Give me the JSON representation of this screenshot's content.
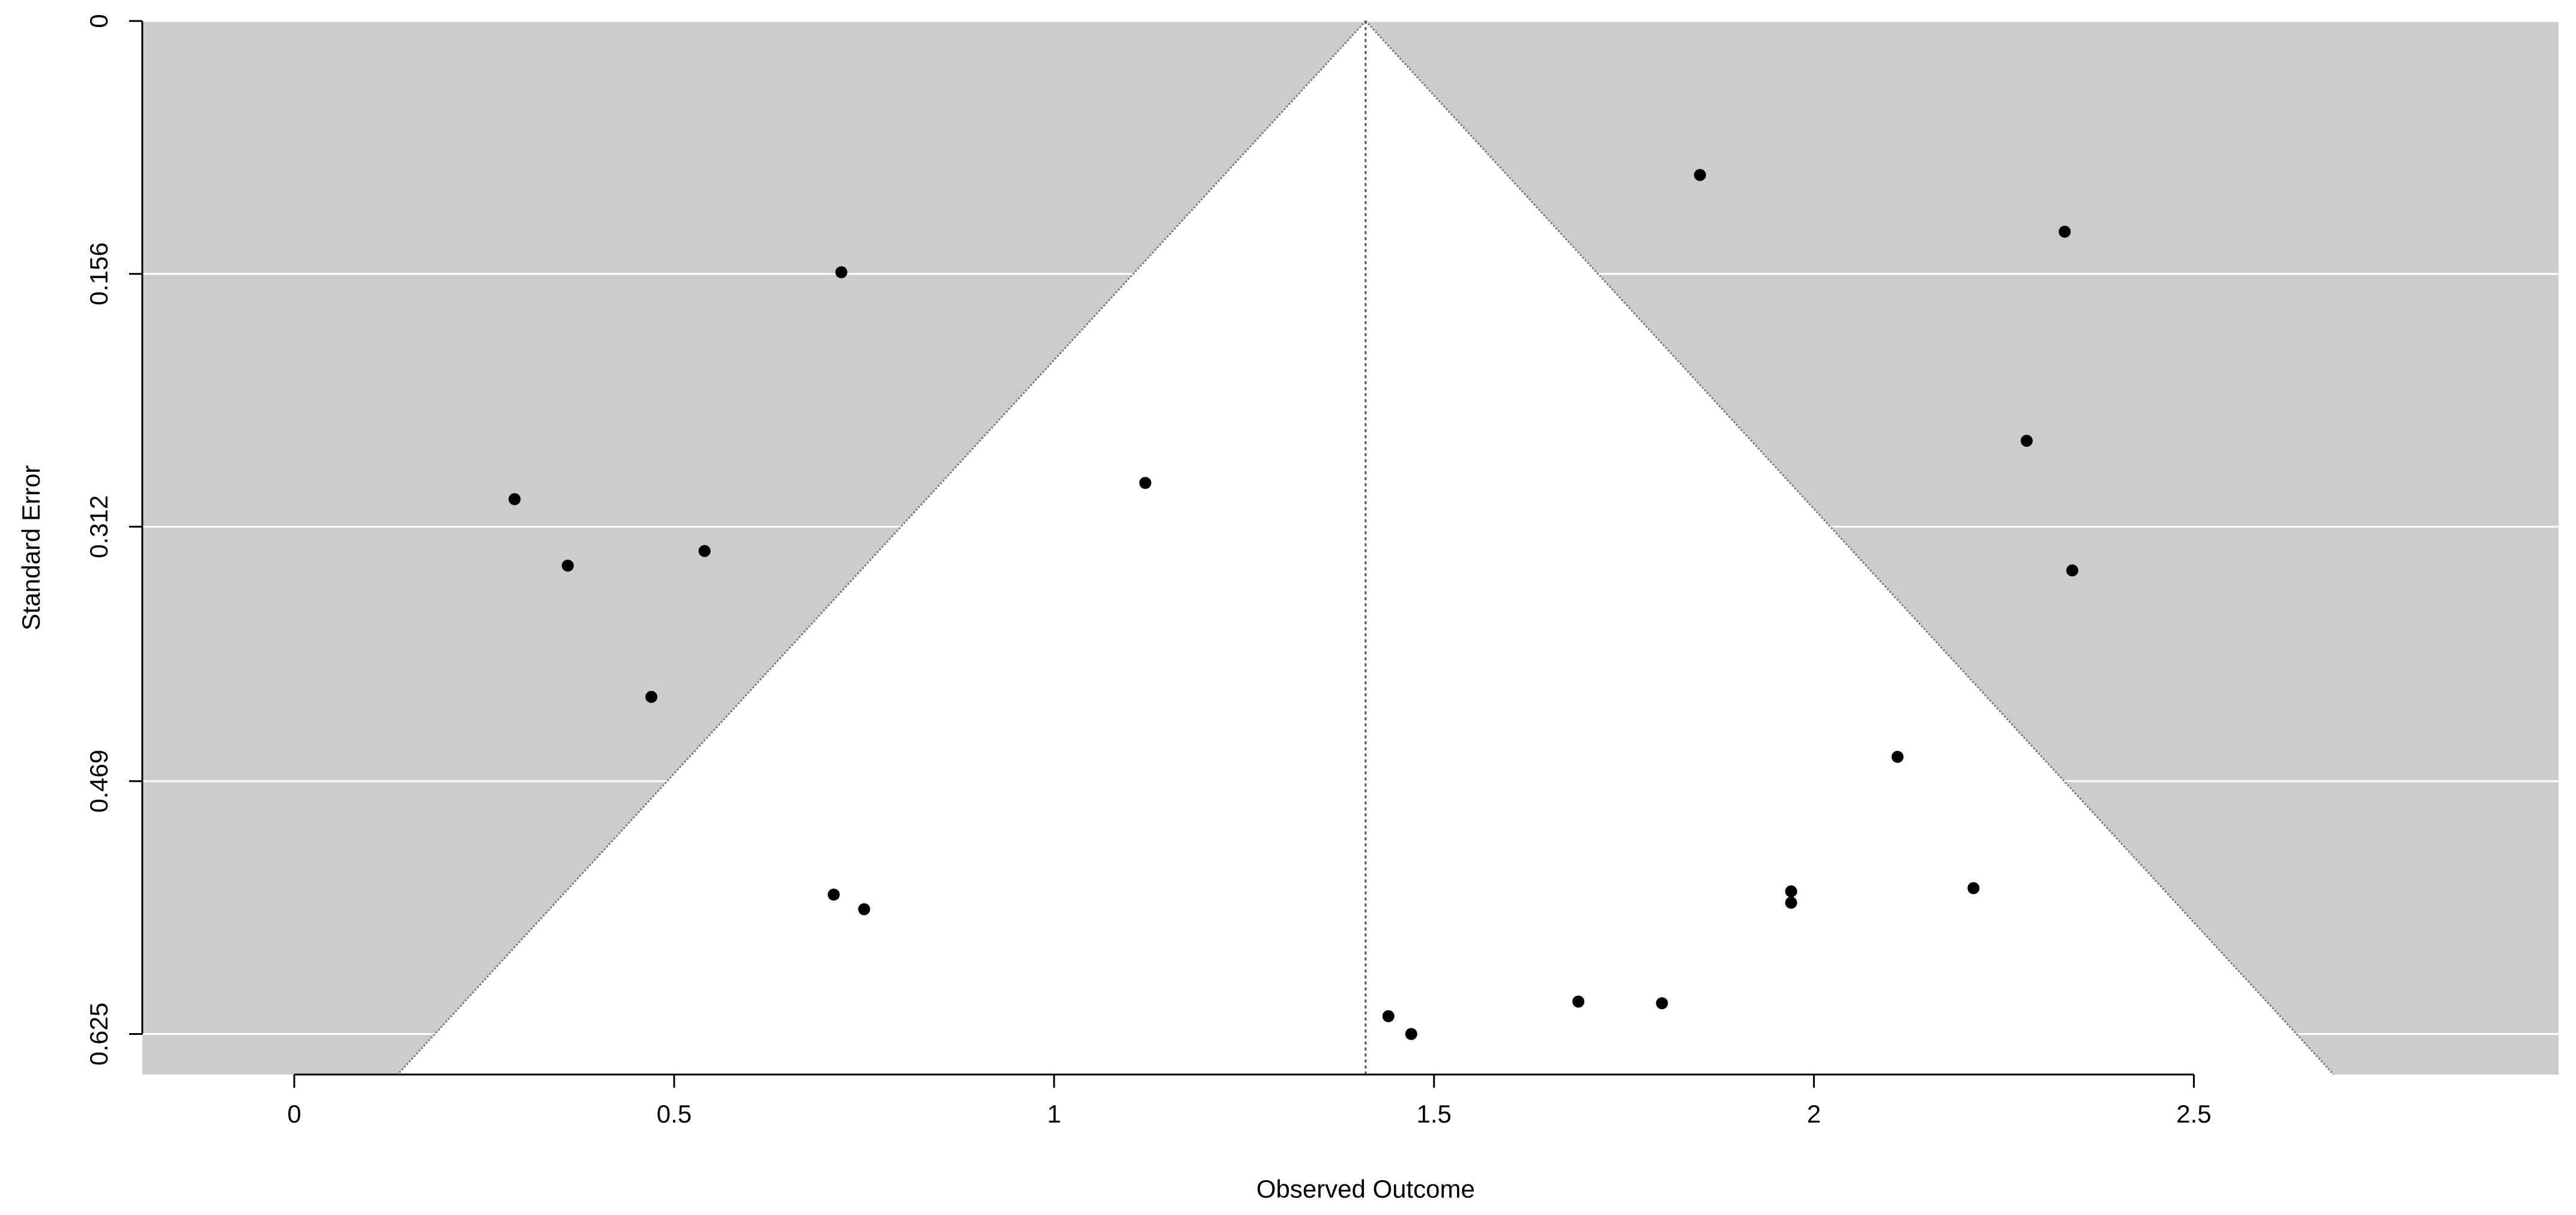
{
  "chart_data": {
    "type": "scatter",
    "subtype": "funnel plot",
    "title": "",
    "xlabel": "Observed Outcome",
    "ylabel": "Standard Error",
    "xlim": [
      -0.2,
      2.98
    ],
    "ylim": [
      0,
      0.65
    ],
    "y_inverted": true,
    "x_ticks": [
      0,
      0.5,
      1,
      1.5,
      2,
      2.5
    ],
    "x_tick_labels": [
      "0",
      "0.5",
      "1",
      "1.5",
      "2",
      "2.5"
    ],
    "y_ticks": [
      0,
      0.156,
      0.312,
      0.469,
      0.625
    ],
    "y_tick_labels": [
      "0",
      "0.156",
      "0.312",
      "0.469",
      "0.625"
    ],
    "grid": "horizontal",
    "center_estimate": 1.41,
    "funnel_multiplier": 1.96,
    "colors": {
      "panel_background": "#cccccc",
      "funnel_region": "#ffffff",
      "gridlines": "#ffffff",
      "points": "#000000",
      "center_line": "#555555"
    },
    "points": [
      {
        "x": 0.29,
        "y": 0.295
      },
      {
        "x": 0.36,
        "y": 0.336
      },
      {
        "x": 0.54,
        "y": 0.327
      },
      {
        "x": 0.47,
        "y": 0.417
      },
      {
        "x": 0.72,
        "y": 0.155
      },
      {
        "x": 1.12,
        "y": 0.285
      },
      {
        "x": 0.71,
        "y": 0.539
      },
      {
        "x": 0.75,
        "y": 0.548
      },
      {
        "x": 1.44,
        "y": 0.614
      },
      {
        "x": 1.47,
        "y": 0.625
      },
      {
        "x": 1.69,
        "y": 0.605
      },
      {
        "x": 1.8,
        "y": 0.606
      },
      {
        "x": 1.85,
        "y": 0.095
      },
      {
        "x": 1.97,
        "y": 0.537
      },
      {
        "x": 1.97,
        "y": 0.544
      },
      {
        "x": 2.11,
        "y": 0.454
      },
      {
        "x": 2.21,
        "y": 0.535
      },
      {
        "x": 2.28,
        "y": 0.259
      },
      {
        "x": 2.33,
        "y": 0.13
      },
      {
        "x": 2.34,
        "y": 0.339
      }
    ]
  }
}
